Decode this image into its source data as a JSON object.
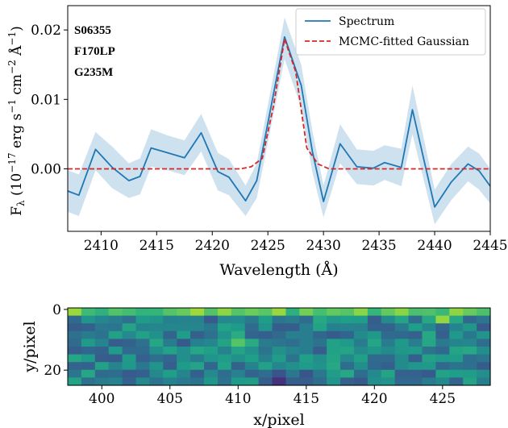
{
  "chart_data": [
    {
      "type": "line",
      "xlabel": "Wavelength (Å)",
      "ylabel": "F_λ (10^-17 erg s^-1 cm^-2 Å^-1)",
      "xlim": [
        2407,
        2445
      ],
      "ylim": [
        -0.009,
        0.0235
      ],
      "grid": false,
      "legend_position": "top-right",
      "x_ticks": [
        "2410",
        "2415",
        "2420",
        "2425",
        "2430",
        "2435",
        "2440",
        "2445"
      ],
      "y_ticks": [
        "0.00",
        "0.01",
        "0.02"
      ],
      "annotations": [
        "S06355",
        "F170LP",
        "G235M"
      ],
      "series": [
        {
          "name": "Spectrum",
          "color": "#1f77b4",
          "x": [
            2407,
            2408,
            2409.5,
            2411,
            2412.5,
            2413.5,
            2414.5,
            2416,
            2417.5,
            2419,
            2420.5,
            2421.5,
            2423,
            2424,
            2426.5,
            2428,
            2429,
            2430,
            2431.5,
            2433,
            2434.5,
            2435.5,
            2437,
            2438,
            2440,
            2441.5,
            2443,
            2444,
            2445
          ],
          "values": [
            -0.0032,
            -0.0038,
            0.0028,
            0.0002,
            -0.0017,
            -0.0011,
            0.003,
            0.0023,
            0.0016,
            0.0052,
            -0.0004,
            -0.0012,
            -0.0046,
            -0.0017,
            0.019,
            0.012,
            0.0025,
            -0.0047,
            0.0036,
            0.0003,
            0.0001,
            0.0009,
            0.0002,
            0.0085,
            -0.0055,
            -0.0019,
            0.0007,
            -0.0003,
            -0.0025
          ],
          "err_low": [
            -0.0062,
            -0.0068,
            -0.0002,
            -0.0028,
            -0.0042,
            -0.0037,
            0.0003,
            -0.0002,
            -0.0009,
            0.0025,
            -0.0031,
            -0.0038,
            -0.0068,
            -0.0042,
            0.0158,
            0.0088,
            -0.0005,
            -0.007,
            0.0008,
            -0.0022,
            -0.0024,
            -0.0016,
            -0.0025,
            0.005,
            -0.008,
            -0.0045,
            -0.0018,
            -0.003,
            -0.005
          ],
          "err_high": [
            -0.0002,
            -0.0008,
            0.0053,
            0.0032,
            0.0008,
            0.0015,
            0.0057,
            0.0048,
            0.0041,
            0.0079,
            0.0023,
            0.0014,
            -0.0024,
            0.0008,
            0.0218,
            0.015,
            0.0055,
            -0.0024,
            0.0064,
            0.0028,
            0.0026,
            0.0034,
            0.0029,
            0.012,
            -0.003,
            0.0007,
            0.0032,
            0.0022,
            0.0
          ]
        },
        {
          "name": "MCMC-fitted Gaussian",
          "color": "#d62728",
          "style": "dashed",
          "x": [
            2407,
            2421,
            2422.5,
            2423.5,
            2424.5,
            2425.5,
            2426.5,
            2427.5,
            2428.5,
            2429.5,
            2430.5,
            2432,
            2445
          ],
          "values": [
            0,
            0,
            0,
            0.0003,
            0.0015,
            0.009,
            0.0187,
            0.014,
            0.003,
            0.0007,
            0,
            0,
            0
          ]
        }
      ]
    },
    {
      "type": "heatmap",
      "xlabel": "x/pixel",
      "ylabel": "y/pixel",
      "xlim": [
        397.5,
        428.5
      ],
      "ylim": [
        25,
        -0.5
      ],
      "x_ticks": [
        "400",
        "405",
        "410",
        "415",
        "420",
        "425"
      ],
      "y_ticks": [
        "0",
        "20"
      ],
      "colormap": "viridis",
      "ncols": 31,
      "nrows": 10,
      "bright_pixels": [
        [
          12.5,
          9.5,
          0.85
        ],
        [
          13,
          11,
          0.75
        ],
        [
          27.5,
          3,
          0.85
        ],
        [
          20,
          2,
          0.7
        ],
        [
          8,
          1,
          0.7
        ],
        [
          4,
          1,
          0.7
        ]
      ],
      "dark_pixels": [
        [
          15.5,
          21.5,
          0.02
        ],
        [
          17.5,
          21,
          0.1
        ],
        [
          25,
          21,
          0.1
        ],
        [
          16,
          6,
          0.15
        ]
      ]
    }
  ]
}
